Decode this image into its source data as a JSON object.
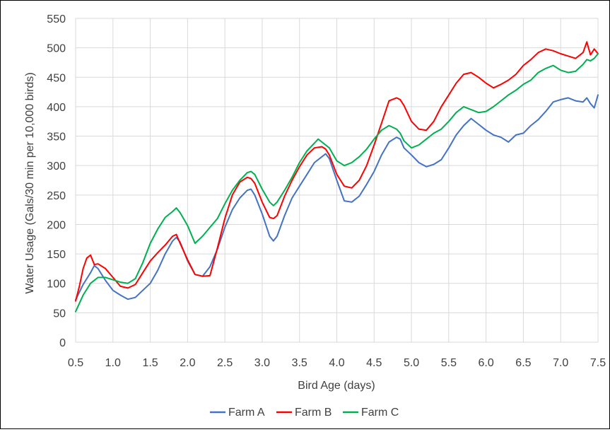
{
  "chart_data": {
    "type": "line",
    "title": "",
    "xlabel": "Bird Age (days)",
    "ylabel": "Water Usage (Gals/30 min per 10,000 birds)",
    "xlim": [
      0.5,
      7.5
    ],
    "ylim": [
      0,
      550
    ],
    "x_ticks": [
      "0.5",
      "1.0",
      "1.5",
      "2.0",
      "2.5",
      "3.0",
      "3.5",
      "4.0",
      "4.5",
      "5.0",
      "5.5",
      "6.0",
      "6.5",
      "7.0",
      "7.5"
    ],
    "y_ticks": [
      "0",
      "50",
      "100",
      "150",
      "200",
      "250",
      "300",
      "350",
      "400",
      "450",
      "500",
      "550"
    ],
    "grid": true,
    "legend_position": "bottom",
    "series": [
      {
        "name": "Farm A",
        "color": "#4472C4",
        "x": [
          0.5,
          0.6,
          0.7,
          0.75,
          0.8,
          0.9,
          1.0,
          1.1,
          1.2,
          1.3,
          1.4,
          1.5,
          1.6,
          1.7,
          1.8,
          1.85,
          1.9,
          2.0,
          2.1,
          2.2,
          2.3,
          2.4,
          2.5,
          2.6,
          2.7,
          2.8,
          2.85,
          2.9,
          3.0,
          3.1,
          3.15,
          3.2,
          3.3,
          3.4,
          3.5,
          3.6,
          3.7,
          3.8,
          3.85,
          3.9,
          4.0,
          4.1,
          4.2,
          4.3,
          4.4,
          4.5,
          4.6,
          4.7,
          4.8,
          4.85,
          4.9,
          5.0,
          5.1,
          5.2,
          5.3,
          5.4,
          5.5,
          5.6,
          5.7,
          5.8,
          5.9,
          6.0,
          6.1,
          6.2,
          6.3,
          6.4,
          6.5,
          6.6,
          6.7,
          6.8,
          6.9,
          7.0,
          7.1,
          7.2,
          7.3,
          7.35,
          7.4,
          7.45,
          7.5
        ],
        "values": [
          72,
          98,
          118,
          130,
          125,
          105,
          88,
          80,
          73,
          76,
          88,
          100,
          122,
          150,
          172,
          178,
          170,
          138,
          115,
          112,
          128,
          158,
          195,
          225,
          245,
          258,
          260,
          250,
          218,
          180,
          172,
          180,
          215,
          245,
          265,
          285,
          305,
          315,
          320,
          312,
          275,
          240,
          238,
          248,
          268,
          290,
          318,
          340,
          348,
          345,
          330,
          318,
          305,
          298,
          302,
          310,
          330,
          352,
          368,
          380,
          370,
          360,
          352,
          348,
          340,
          352,
          355,
          368,
          378,
          392,
          408,
          412,
          415,
          410,
          408,
          415,
          405,
          398,
          420
        ]
      },
      {
        "name": "Farm B",
        "color": "#FF0000",
        "x": [
          0.5,
          0.55,
          0.6,
          0.65,
          0.7,
          0.75,
          0.8,
          0.9,
          1.0,
          1.1,
          1.2,
          1.3,
          1.4,
          1.5,
          1.6,
          1.7,
          1.8,
          1.85,
          1.9,
          2.0,
          2.1,
          2.2,
          2.3,
          2.4,
          2.5,
          2.6,
          2.7,
          2.8,
          2.85,
          2.9,
          3.0,
          3.1,
          3.15,
          3.2,
          3.3,
          3.4,
          3.5,
          3.6,
          3.7,
          3.8,
          3.85,
          3.9,
          4.0,
          4.1,
          4.2,
          4.3,
          4.4,
          4.5,
          4.6,
          4.7,
          4.8,
          4.85,
          4.9,
          5.0,
          5.1,
          5.2,
          5.3,
          5.4,
          5.5,
          5.6,
          5.7,
          5.8,
          5.9,
          6.0,
          6.1,
          6.2,
          6.3,
          6.4,
          6.5,
          6.6,
          6.7,
          6.8,
          6.9,
          7.0,
          7.1,
          7.2,
          7.3,
          7.35,
          7.4,
          7.45,
          7.5
        ],
        "values": [
          70,
          95,
          125,
          143,
          148,
          132,
          133,
          125,
          110,
          95,
          92,
          98,
          118,
          138,
          152,
          165,
          180,
          183,
          168,
          140,
          115,
          112,
          113,
          160,
          210,
          250,
          272,
          280,
          278,
          270,
          238,
          212,
          210,
          215,
          248,
          275,
          298,
          318,
          330,
          332,
          328,
          318,
          285,
          265,
          262,
          275,
          300,
          335,
          372,
          410,
          415,
          412,
          402,
          375,
          362,
          360,
          375,
          400,
          420,
          440,
          455,
          458,
          450,
          440,
          432,
          438,
          445,
          455,
          470,
          480,
          492,
          498,
          495,
          490,
          486,
          482,
          492,
          510,
          488,
          498,
          490
        ]
      },
      {
        "name": "Farm C",
        "color": "#00B050",
        "x": [
          0.5,
          0.6,
          0.7,
          0.8,
          0.9,
          1.0,
          1.1,
          1.2,
          1.3,
          1.4,
          1.5,
          1.6,
          1.7,
          1.8,
          1.85,
          1.9,
          2.0,
          2.1,
          2.2,
          2.3,
          2.4,
          2.5,
          2.6,
          2.7,
          2.8,
          2.85,
          2.9,
          3.0,
          3.1,
          3.15,
          3.2,
          3.3,
          3.4,
          3.5,
          3.6,
          3.7,
          3.75,
          3.8,
          3.9,
          4.0,
          4.1,
          4.2,
          4.3,
          4.4,
          4.5,
          4.6,
          4.7,
          4.8,
          4.85,
          4.9,
          5.0,
          5.1,
          5.2,
          5.3,
          5.4,
          5.5,
          5.6,
          5.7,
          5.8,
          5.9,
          6.0,
          6.1,
          6.2,
          6.3,
          6.4,
          6.5,
          6.6,
          6.7,
          6.8,
          6.9,
          7.0,
          7.1,
          7.2,
          7.3,
          7.35,
          7.4,
          7.45,
          7.5
        ],
        "values": [
          52,
          80,
          100,
          110,
          110,
          106,
          102,
          100,
          108,
          135,
          168,
          192,
          212,
          222,
          228,
          220,
          198,
          168,
          180,
          195,
          210,
          235,
          258,
          275,
          288,
          290,
          285,
          260,
          238,
          232,
          238,
          258,
          280,
          305,
          325,
          338,
          345,
          340,
          330,
          308,
          300,
          305,
          315,
          328,
          345,
          360,
          368,
          362,
          355,
          342,
          330,
          335,
          345,
          355,
          362,
          375,
          390,
          400,
          395,
          390,
          392,
          400,
          410,
          420,
          428,
          438,
          445,
          458,
          465,
          470,
          462,
          458,
          460,
          472,
          480,
          478,
          482,
          490
        ]
      }
    ]
  }
}
